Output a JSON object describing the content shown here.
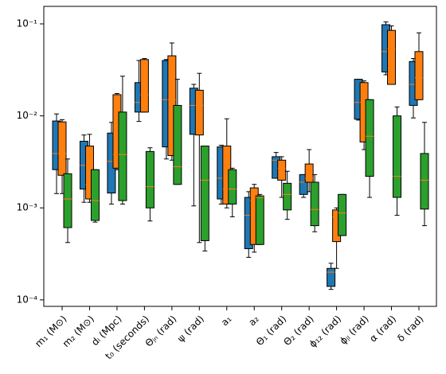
{
  "chart_data": {
    "type": "box",
    "log_y": true,
    "categories": [
      "m₁ (M⊙)",
      "m₂ (M⊙)",
      "dₗ (Mpc)",
      "t₀ (seconds)",
      "Θⱼₙ (rad)",
      "ψ (rad)",
      "a₁",
      "a₂",
      "Θ₁ (rad)",
      "Θ₂ (rad)",
      "ϕ₁₂ (rad)",
      "ϕⱼₗ (rad)",
      "α (rad)",
      "δ (rad)"
    ],
    "ylim": [
      8.5e-05,
      0.155
    ],
    "yticks": [
      {
        "value": 0.0001,
        "label": "10⁻⁴"
      },
      {
        "value": 0.001,
        "label": "10⁻³"
      },
      {
        "value": 0.01,
        "label": "10⁻²"
      },
      {
        "value": 0.1,
        "label": "10⁻¹"
      }
    ],
    "median_color": "#ff7f0e",
    "series": [
      {
        "color": "#1f77b4",
        "whislo": [
          0.00143,
          0.00115,
          0.0011,
          0.0087,
          0.0034,
          0.00105,
          0.0011,
          0.00029,
          0.0021,
          0.0013,
          0.00013,
          0.009,
          0.028,
          0.0095
        ],
        "q1": [
          0.0026,
          0.0016,
          0.00145,
          0.011,
          0.0046,
          0.0063,
          0.00125,
          0.00036,
          0.0021,
          0.0014,
          0.00014,
          0.0092,
          0.03,
          0.013
        ],
        "med": [
          0.0039,
          0.0029,
          0.0032,
          0.014,
          0.015,
          0.013,
          0.0021,
          0.00083,
          0.0033,
          0.0019,
          0.0002,
          0.014,
          0.05,
          0.022
        ],
        "q3": [
          0.0088,
          0.0053,
          0.0065,
          0.023,
          0.04,
          0.02,
          0.0046,
          0.0013,
          0.0036,
          0.0023,
          0.00022,
          0.025,
          0.098,
          0.039
        ],
        "whishi": [
          0.0105,
          0.0062,
          0.0085,
          0.04,
          0.041,
          0.022,
          0.0048,
          0.0015,
          0.004,
          0.0023,
          0.00025,
          0.025,
          0.105,
          0.042
        ]
      },
      {
        "color": "#ff7f0e",
        "whislo": [
          0.00143,
          0.00115,
          0.0026,
          0.011,
          0.0033,
          0.00042,
          0.001,
          0.00033,
          0.0013,
          0.0015,
          0.00022,
          0.0043,
          0.022,
          0.015
        ],
        "q1": [
          0.00226,
          0.00125,
          0.0027,
          0.011,
          0.0037,
          0.0062,
          0.0011,
          0.0004,
          0.002,
          0.0019,
          0.00043,
          0.0052,
          0.022,
          0.015
        ],
        "med": [
          0.0039,
          0.0018,
          0.0038,
          0.017,
          0.015,
          0.013,
          0.0016,
          0.0012,
          0.0027,
          0.0021,
          0.0008,
          0.014,
          0.053,
          0.026
        ],
        "q3": [
          0.0086,
          0.0047,
          0.017,
          0.041,
          0.045,
          0.019,
          0.0047,
          0.00165,
          0.0033,
          0.003,
          0.00095,
          0.023,
          0.085,
          0.05
        ],
        "whishi": [
          0.0091,
          0.0063,
          0.0175,
          0.042,
          0.062,
          0.029,
          0.0093,
          0.0018,
          0.0036,
          0.0043,
          0.001,
          0.024,
          0.095,
          0.08
        ]
      },
      {
        "color": "#2ca02c",
        "whislo": [
          0.00042,
          0.0007,
          0.0011,
          0.00072,
          0.0018,
          0.00034,
          0.0008,
          0.0004,
          0.00075,
          0.00055,
          0.0005,
          0.0013,
          0.00083,
          0.00064
        ],
        "q1": [
          0.00061,
          0.00073,
          0.0012,
          0.001,
          0.0018,
          0.00044,
          0.0011,
          0.0004,
          0.00095,
          0.00064,
          0.0005,
          0.0022,
          0.0013,
          0.00097
        ],
        "med": [
          0.00125,
          0.0012,
          0.0038,
          0.0017,
          0.0028,
          0.002,
          0.0016,
          0.0013,
          0.0014,
          0.00096,
          0.00088,
          0.006,
          0.0022,
          0.002
        ],
        "q3": [
          0.00235,
          0.0026,
          0.011,
          0.0041,
          0.013,
          0.0047,
          0.0026,
          0.00135,
          0.00185,
          0.0019,
          0.0014,
          0.015,
          0.01,
          0.0039
        ],
        "whishi": [
          0.0034,
          0.0026,
          0.027,
          0.0045,
          0.025,
          0.0047,
          0.0027,
          0.0014,
          0.0025,
          0.0023,
          0.0014,
          0.015,
          0.0125,
          0.0085
        ]
      }
    ]
  }
}
